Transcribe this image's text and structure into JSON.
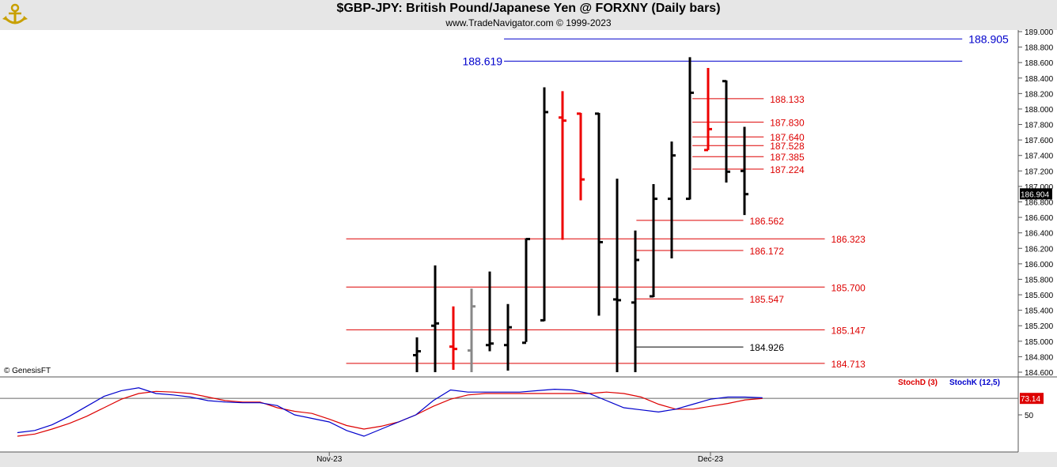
{
  "header": {
    "title": "$GBP-JPY:  British Pound/Japanese Yen @ FORXNY  (Daily bars)",
    "subtitle": "www.TradeNavigator.com © 1999-2023"
  },
  "watermark": "© GenesisFT",
  "colors": {
    "background": "#ffffff",
    "frame": "#e6e6e6",
    "bar_black": "#000000",
    "bar_red": "#ee0000",
    "bar_gray": "#888888",
    "level_red": "#dd0000",
    "level_blue": "#0000cc",
    "stochd": "#dd0000",
    "stochk": "#0000cc"
  },
  "chart_data": [
    {
      "type": "ohlc",
      "name": "price",
      "ylim": [
        184.6,
        189.0
      ],
      "y_ticks": [
        "189.000",
        "188.800",
        "188.600",
        "188.400",
        "188.200",
        "188.000",
        "187.800",
        "187.600",
        "187.400",
        "187.200",
        "187.000",
        "186.800",
        "186.600",
        "186.400",
        "186.200",
        "186.000",
        "185.800",
        "185.600",
        "185.400",
        "185.200",
        "185.000",
        "184.800",
        "184.600"
      ],
      "last_price": "186.904",
      "bars": [
        {
          "o": 184.82,
          "h": 185.05,
          "l": 184.6,
          "c": 184.87,
          "color": "black"
        },
        {
          "o": 185.2,
          "h": 185.98,
          "l": 184.6,
          "c": 185.23,
          "color": "black"
        },
        {
          "o": 184.93,
          "h": 185.45,
          "l": 184.63,
          "c": 184.9,
          "color": "red"
        },
        {
          "o": 184.88,
          "h": 185.68,
          "l": 184.6,
          "c": 185.45,
          "color": "gray"
        },
        {
          "o": 184.95,
          "h": 185.9,
          "l": 184.87,
          "c": 184.97,
          "color": "black"
        },
        {
          "o": 184.95,
          "h": 185.48,
          "l": 184.62,
          "c": 185.18,
          "color": "black"
        },
        {
          "o": 184.98,
          "h": 186.33,
          "l": 184.99,
          "c": 186.32,
          "color": "black"
        },
        {
          "o": 185.27,
          "h": 188.28,
          "l": 185.26,
          "c": 187.96,
          "color": "black"
        },
        {
          "o": 187.89,
          "h": 188.23,
          "l": 186.31,
          "c": 187.85,
          "color": "red"
        },
        {
          "o": 187.94,
          "h": 187.95,
          "l": 186.82,
          "c": 187.09,
          "color": "red"
        },
        {
          "o": 187.94,
          "h": 187.95,
          "l": 185.33,
          "c": 186.28,
          "color": "black"
        },
        {
          "o": 185.54,
          "h": 187.1,
          "l": 184.6,
          "c": 185.53,
          "color": "black"
        },
        {
          "o": 185.5,
          "h": 186.43,
          "l": 184.6,
          "c": 186.05,
          "color": "black"
        },
        {
          "o": 185.58,
          "h": 187.03,
          "l": 185.57,
          "c": 186.84,
          "color": "black"
        },
        {
          "o": 186.84,
          "h": 187.58,
          "l": 186.07,
          "c": 187.4,
          "color": "black"
        },
        {
          "o": 186.84,
          "h": 188.67,
          "l": 186.83,
          "c": 188.21,
          "color": "black"
        },
        {
          "o": 187.47,
          "h": 188.53,
          "l": 187.47,
          "c": 187.74,
          "color": "red"
        },
        {
          "o": 188.36,
          "h": 188.37,
          "l": 187.05,
          "c": 187.19,
          "color": "black"
        },
        {
          "o": 187.2,
          "h": 187.77,
          "l": 186.63,
          "c": 186.9,
          "color": "black"
        }
      ],
      "levels": [
        {
          "label": "188.905",
          "value": 188.905,
          "color": "blue",
          "x_from": 0.495,
          "x_to": 0.945,
          "label_side": "right"
        },
        {
          "label": "188.619",
          "value": 188.619,
          "color": "blue",
          "x_from": 0.495,
          "x_to": 0.945,
          "label_side": "left"
        },
        {
          "label": "188.133",
          "value": 188.133,
          "color": "red",
          "x_from": 0.68,
          "x_to": 0.75
        },
        {
          "label": "187.830",
          "value": 187.83,
          "color": "red",
          "x_from": 0.68,
          "x_to": 0.75
        },
        {
          "label": "187.640",
          "value": 187.64,
          "color": "red",
          "x_from": 0.68,
          "x_to": 0.75
        },
        {
          "label": "187.528",
          "value": 187.528,
          "color": "red",
          "x_from": 0.68,
          "x_to": 0.75
        },
        {
          "label": "187.385",
          "value": 187.385,
          "color": "red",
          "x_from": 0.68,
          "x_to": 0.75
        },
        {
          "label": "187.224",
          "value": 187.224,
          "color": "red",
          "x_from": 0.68,
          "x_to": 0.75
        },
        {
          "label": "186.562",
          "value": 186.562,
          "color": "red",
          "x_from": 0.625,
          "x_to": 0.73
        },
        {
          "label": "186.323",
          "value": 186.323,
          "color": "red",
          "x_from": 0.34,
          "x_to": 0.81
        },
        {
          "label": "186.172",
          "value": 186.172,
          "color": "red",
          "x_from": 0.625,
          "x_to": 0.73
        },
        {
          "label": "185.700",
          "value": 185.7,
          "color": "red",
          "x_from": 0.34,
          "x_to": 0.81
        },
        {
          "label": "185.547",
          "value": 185.547,
          "color": "red",
          "x_from": 0.625,
          "x_to": 0.73
        },
        {
          "label": "185.147",
          "value": 185.147,
          "color": "red",
          "x_from": 0.34,
          "x_to": 0.81
        },
        {
          "label": "184.926",
          "value": 184.926,
          "color": "black",
          "x_from": 0.625,
          "x_to": 0.73
        },
        {
          "label": "184.713",
          "value": 184.713,
          "color": "red",
          "x_from": 0.34,
          "x_to": 0.81
        }
      ]
    },
    {
      "type": "line",
      "name": "stochastic",
      "ylim": [
        0,
        100
      ],
      "y_ticks": [
        "50"
      ],
      "last_value": "73.14",
      "x_labels": [
        {
          "label": "Nov-23",
          "index": 18
        },
        {
          "label": "Dec-23",
          "index": 40
        }
      ],
      "series": [
        {
          "name": "StochD (3)",
          "color": "red",
          "values": [
            20,
            23,
            30,
            38,
            48,
            60,
            72,
            80,
            83,
            82,
            80,
            75,
            70,
            68,
            68,
            60,
            55,
            52,
            44,
            35,
            30,
            34,
            40,
            50,
            62,
            72,
            78,
            80,
            80,
            80,
            80,
            80,
            80,
            80,
            82,
            80,
            75,
            65,
            58,
            58,
            62,
            66,
            71,
            73
          ]
        },
        {
          "name": "StochK (12,5)",
          "color": "blue",
          "values": [
            25,
            28,
            36,
            48,
            62,
            76,
            84,
            88,
            80,
            78,
            75,
            70,
            68,
            67,
            67,
            63,
            50,
            45,
            40,
            28,
            20,
            30,
            40,
            50,
            70,
            85,
            82,
            82,
            82,
            82,
            84,
            86,
            85,
            80,
            70,
            60,
            57,
            54,
            58,
            65,
            72,
            75,
            75,
            74
          ]
        }
      ]
    }
  ]
}
